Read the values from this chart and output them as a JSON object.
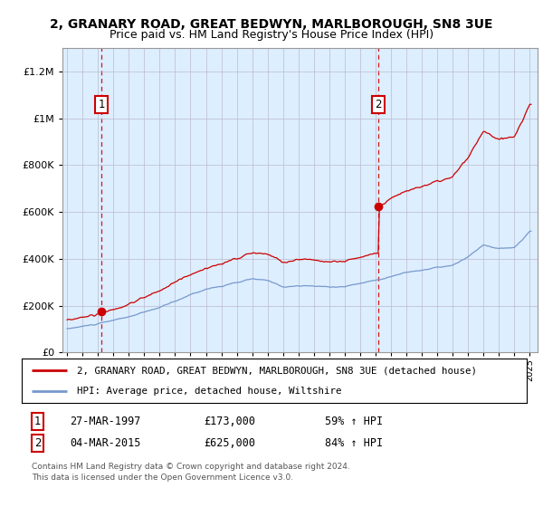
{
  "title1": "2, GRANARY ROAD, GREAT BEDWYN, MARLBOROUGH, SN8 3UE",
  "title2": "Price paid vs. HM Land Registry's House Price Index (HPI)",
  "sale1_date": "27-MAR-1997",
  "sale1_price": 173000,
  "sale1_hpi": "59% ↑ HPI",
  "sale1_year": 1997.22,
  "sale2_date": "04-MAR-2015",
  "sale2_price": 625000,
  "sale2_hpi": "84% ↑ HPI",
  "sale2_year": 2015.17,
  "red_color": "#cc0000",
  "blue_color": "#7799cc",
  "background_color": "#ddeeff",
  "legend_label1": "2, GRANARY ROAD, GREAT BEDWYN, MARLBOROUGH, SN8 3UE (detached house)",
  "legend_label2": "HPI: Average price, detached house, Wiltshire",
  "footer": "Contains HM Land Registry data © Crown copyright and database right 2024.\nThis data is licensed under the Open Government Licence v3.0.",
  "ylim": [
    0,
    1300000
  ],
  "xlim_start": 1994.7,
  "xlim_end": 2025.5
}
